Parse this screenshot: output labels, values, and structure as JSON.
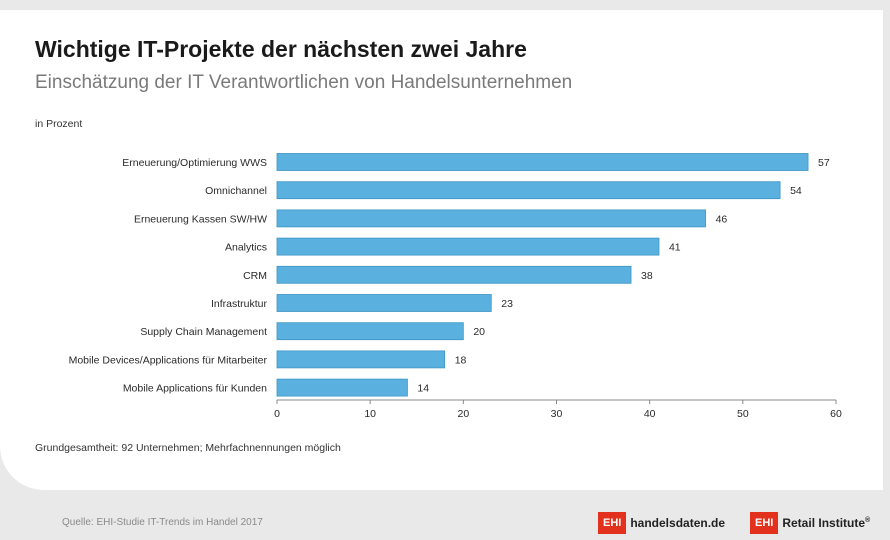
{
  "header": {
    "title": "Wichtige IT-Projekte der nächsten zwei Jahre",
    "subtitle": "Einschätzung der IT Verantwortlichen von Handelsunternehmen",
    "unit": "in Prozent"
  },
  "note": "Grundgesamtheit: 92 Unternehmen; Mehrfachnennungen möglich",
  "footer": {
    "source": "Quelle: EHI-Studie IT-Trends im Handel 2017",
    "logo_handelsdaten_box": "EHI",
    "logo_handelsdaten_text": "handelsdaten.de",
    "logo_retail_box": "EHI",
    "logo_retail_text": "Retail Institute",
    "logo_retail_reg": "®"
  },
  "colors": {
    "bar": "#5ab1df",
    "bar_stroke": "#3e95c4",
    "axis": "#888888"
  },
  "chart_data": {
    "type": "bar",
    "orientation": "horizontal",
    "title": "Wichtige IT-Projekte der nächsten zwei Jahre",
    "subtitle": "Einschätzung der IT Verantwortlichen von Handelsunternehmen",
    "xlabel": "in Prozent",
    "categories": [
      "Erneuerung/Optimierung WWS",
      "Omnichannel",
      "Erneuerung Kassen SW/HW",
      "Analytics",
      "CRM",
      "Infrastruktur",
      "Supply Chain Management",
      "Mobile Devices/Applications für Mitarbeiter",
      "Mobile Applications für Kunden"
    ],
    "values": [
      57,
      54,
      46,
      41,
      38,
      23,
      20,
      18,
      14
    ],
    "xlim": [
      0,
      60
    ],
    "ticks": [
      0,
      10,
      20,
      30,
      40,
      50,
      60
    ],
    "grid": false
  }
}
